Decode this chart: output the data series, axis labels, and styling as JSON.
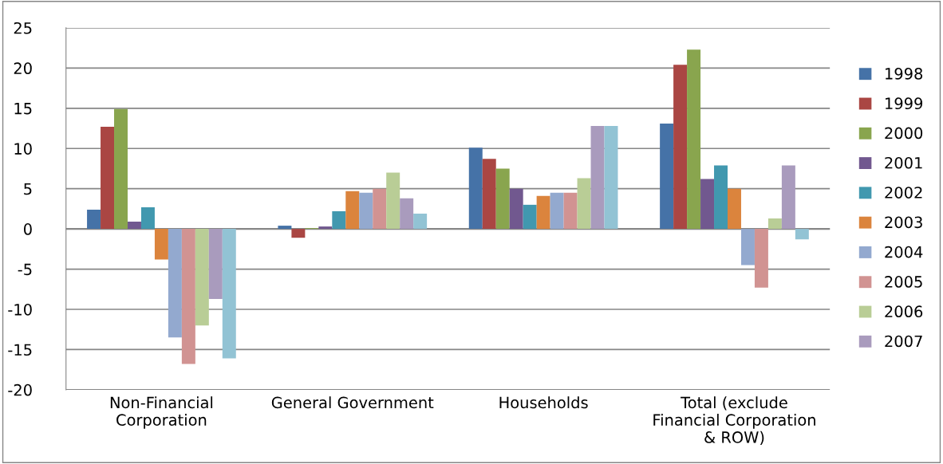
{
  "chart_data": {
    "type": "bar",
    "categories": [
      "Non-Financial Corporation",
      "General Government",
      "Households",
      "Total (exclude Financial Corporation & ROW)"
    ],
    "series": [
      {
        "name": "1998",
        "color": "#4572a7",
        "values": [
          2.4,
          0.4,
          10.1,
          13.1
        ]
      },
      {
        "name": "1999",
        "color": "#aa4643",
        "values": [
          12.7,
          -1.1,
          8.7,
          20.4
        ]
      },
      {
        "name": "2000",
        "color": "#89a54e",
        "values": [
          14.9,
          0.1,
          7.5,
          22.3
        ]
      },
      {
        "name": "2001",
        "color": "#71588f",
        "values": [
          0.9,
          0.3,
          5.0,
          6.2
        ]
      },
      {
        "name": "2002",
        "color": "#4198af",
        "values": [
          2.7,
          2.2,
          3.0,
          7.9
        ]
      },
      {
        "name": "2003",
        "color": "#db843d",
        "values": [
          -3.8,
          4.7,
          4.1,
          5.0
        ]
      },
      {
        "name": "2004",
        "color": "#93a9cf",
        "values": [
          -13.5,
          4.5,
          4.5,
          -4.5
        ]
      },
      {
        "name": "2005",
        "color": "#d19392",
        "values": [
          -16.8,
          5.0,
          4.5,
          -7.3
        ]
      },
      {
        "name": "2006",
        "color": "#b9cd96",
        "values": [
          -12.0,
          7.0,
          6.3,
          1.3
        ]
      },
      {
        "name": "2007",
        "color": "#a99bbd",
        "values": [
          -8.7,
          3.8,
          12.8,
          7.9
        ]
      },
      {
        "color": "#92c3d4",
        "values": [
          -16.1,
          1.9,
          12.8,
          -1.3
        ]
      }
    ],
    "ylim": [
      -20,
      25
    ],
    "yticks": [
      -20,
      -15,
      -10,
      -5,
      0,
      5,
      10,
      15,
      20,
      25
    ],
    "grid": "y",
    "legend": "right"
  }
}
